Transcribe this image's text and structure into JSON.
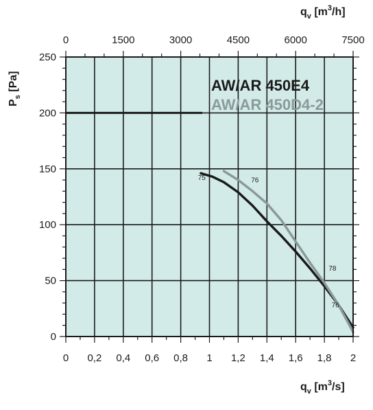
{
  "chart_data": {
    "type": "line",
    "x_bottom": {
      "label_main": "q",
      "label_sub": "v",
      "label_unit": " [m",
      "label_sup": "3",
      "label_unit_end": "/s]",
      "range": [
        0,
        2
      ],
      "ticks": [
        0,
        0.2,
        0.4,
        0.6,
        0.8,
        1,
        1.2,
        1.4,
        1.6,
        1.8,
        2
      ],
      "tick_labels": [
        "0",
        "0,2",
        "0,4",
        "0,6",
        "0,8",
        "1",
        "1,2",
        "1,4",
        "1,6",
        "1,8",
        "2"
      ]
    },
    "x_top": {
      "label_main": "q",
      "label_sub": "v",
      "label_unit": " [m",
      "label_sup": "3",
      "label_unit_end": "/h]",
      "range": [
        0,
        7500
      ],
      "ticks": [
        0,
        1500,
        3000,
        4500,
        6000,
        7500
      ],
      "tick_labels": [
        "0",
        "1500",
        "3000",
        "4500",
        "6000",
        "7500"
      ]
    },
    "y": {
      "label_main": "P",
      "label_sub": "s",
      "label_unit": " [Pa]",
      "range": [
        0,
        250
      ],
      "ticks": [
        0,
        50,
        100,
        150,
        200,
        250
      ],
      "tick_labels": [
        "0",
        "50",
        "100",
        "150",
        "200",
        "250"
      ]
    },
    "grid": true,
    "legend_position": "top-right",
    "colors": {
      "plot_background": "#d3ebe8",
      "grid": "#1a1a1a",
      "series_1": "#1a1a1a",
      "series_2": "#8a9a9a"
    },
    "series": [
      {
        "name": "AW/AR 450E4",
        "x": [
          0.94,
          1.02,
          1.1,
          1.2,
          1.3,
          1.4,
          1.5,
          1.6,
          1.7,
          1.8,
          1.9,
          2.0
        ],
        "y": [
          146,
          143,
          138,
          129,
          117,
          103,
          90,
          76,
          61,
          45,
          28,
          8
        ]
      },
      {
        "name": "AW/AR 450D4-2",
        "x": [
          1.1,
          1.2,
          1.3,
          1.4,
          1.5,
          1.6,
          1.7,
          1.8,
          1.9,
          2.0
        ],
        "y": [
          148,
          140,
          130,
          119,
          104,
          85,
          66,
          48,
          28,
          4
        ]
      }
    ],
    "point_labels": [
      {
        "text": "75",
        "x": 0.92,
        "y": 140
      },
      {
        "text": "76",
        "x": 1.29,
        "y": 138
      },
      {
        "text": "78",
        "x": 1.83,
        "y": 59
      },
      {
        "text": "76",
        "x": 1.85,
        "y": 26
      }
    ],
    "reference_line": {
      "y": 200,
      "x_from": 0,
      "x_to": 0.95
    }
  }
}
